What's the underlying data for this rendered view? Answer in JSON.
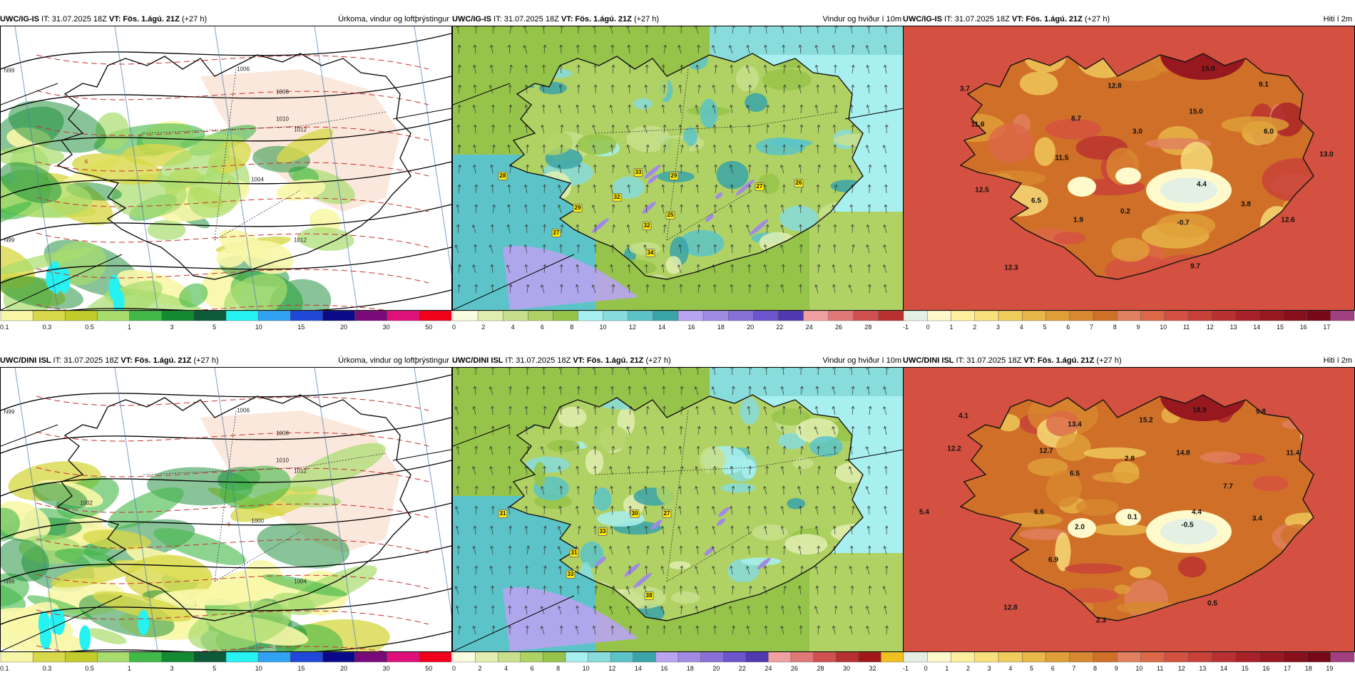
{
  "colors": {
    "precip": [
      "#f8f7a8",
      "#d8d84a",
      "#c2cc2a",
      "#a8dd6e",
      "#42b848",
      "#138a32",
      "#0c5a38",
      "#26f2f2",
      "#31a2f2",
      "#2047d8",
      "#0a0a88",
      "#7a0a7a",
      "#e0107a",
      "#f0001a"
    ],
    "wind": [
      "#fbfde0",
      "#e2eeb0",
      "#c8e08c",
      "#b0d264",
      "#96c44a",
      "#a8f0f0",
      "#88dcdc",
      "#5cc4c8",
      "#3aa4a8",
      "#b8a4f0",
      "#a08ae4",
      "#8870d8",
      "#6c54cc",
      "#5038b0",
      "#f0a0a0",
      "#e07878",
      "#d05050",
      "#b83030",
      "#a01818",
      "#f0c020"
    ],
    "temp": [
      "#e4f0e4",
      "#fffacc",
      "#fff0a0",
      "#f8e07c",
      "#f0cc5c",
      "#e8b848",
      "#e0a038",
      "#d88830",
      "#d07028",
      "#e08060",
      "#dc6848",
      "#d45040",
      "#c84038",
      "#b83030",
      "#a82028",
      "#981820",
      "#88101c",
      "#780818",
      "#a04080"
    ]
  },
  "panels": [
    {
      "model": "UWC/IG-IS",
      "run_text": " IT: 31.07.2025 18Z ",
      "vt_label": "VT: Fös. 1.ágú. 21Z",
      "lead": " (+27 h)",
      "title": "Úrkoma, vindur og loftþrýstingur",
      "field": "precip",
      "legend": [
        "0.1",
        "0.3",
        "0.5",
        "1",
        "3",
        "5",
        "10",
        "15",
        "20",
        "30",
        "50"
      ],
      "isobars": [
        "1006",
        "1008",
        "1010",
        "1012",
        "1004",
        "1012",
        "6",
        "4",
        "N99",
        "N99"
      ],
      "values": []
    },
    {
      "model": "UWC/IG-IS",
      "run_text": " IT: 31.07.2025 18Z ",
      "vt_label": "VT: Fös. 1.ágú. 21Z",
      "lead": " (+27 h)",
      "title": "Vindur og hviður í 10m",
      "field": "wind",
      "legend": [
        "0",
        "2",
        "4",
        "6",
        "8",
        "10",
        "12",
        "14",
        "16",
        "18",
        "20",
        "22",
        "24",
        "26",
        "28"
      ],
      "values": [
        "28",
        "32",
        "33",
        "29",
        "27",
        "26",
        "29",
        "25",
        "32",
        "27",
        "34"
      ]
    },
    {
      "model": "UWC/IG-IS",
      "run_text": " IT: 31.07.2025 18Z ",
      "vt_label": "VT: Fös. 1.ágú. 21Z",
      "lead": " (+27 h)",
      "title": "Hiti í 2m",
      "field": "temp",
      "legend": [
        "-1",
        "0",
        "1",
        "2",
        "3",
        "4",
        "5",
        "6",
        "7",
        "8",
        "9",
        "10",
        "11",
        "12",
        "13",
        "14",
        "15",
        "16",
        "17"
      ],
      "values": [
        "15.0",
        "9.1",
        "3.7",
        "12.8",
        "11.6",
        "8.7",
        "15.0",
        "3.0",
        "6.0",
        "11.5",
        "13.0",
        "4.4",
        "12.5",
        "6.5",
        "1.9",
        "0.2",
        "3.8",
        "-0.7",
        "12.6",
        "12.3",
        "9.7"
      ]
    },
    {
      "model": "UWC/DINI ISL",
      "run_text": " IT: 31.07.2025 18Z ",
      "vt_label": "VT: Fös. 1.ágú. 21Z",
      "lead": " (+27 h)",
      "title": "Úrkoma, vindur og loftþrýstingur",
      "field": "precip",
      "legend": [
        "0.1",
        "0.3",
        "0.5",
        "1",
        "3",
        "5",
        "10",
        "15",
        "20",
        "30",
        "50"
      ],
      "isobars": [
        "1006",
        "1008",
        "1010",
        "1012",
        "1000",
        "1004",
        "1002",
        "6",
        "N99",
        "N99"
      ],
      "values": []
    },
    {
      "model": "UWC/DINI ISL",
      "run_text": " IT: 31.07.2025 18Z ",
      "vt_label": "VT: Fös. 1.ágú. 21Z",
      "lead": " (+27 h)",
      "title": "Vindur og hviður í 10m",
      "field": "wind",
      "legend": [
        "0",
        "2",
        "4",
        "6",
        "8",
        "10",
        "12",
        "14",
        "16",
        "18",
        "20",
        "22",
        "24",
        "26",
        "28",
        "30",
        "32"
      ],
      "values": [
        "31",
        "30",
        "27",
        "33",
        "31",
        "33",
        "38"
      ]
    },
    {
      "model": "UWC/DINI ISL",
      "run_text": " IT: 31.07.2025 18Z ",
      "vt_label": "VT: Fös. 1.ágú. 21Z",
      "lead": " (+27 h)",
      "title": "Hiti í 2m",
      "field": "temp",
      "legend": [
        "-1",
        "0",
        "1",
        "2",
        "3",
        "4",
        "5",
        "6",
        "7",
        "8",
        "9",
        "10",
        "11",
        "12",
        "13",
        "14",
        "15",
        "16",
        "17",
        "18",
        "19"
      ],
      "values": [
        "18.9",
        "9.8",
        "4.1",
        "15.2",
        "13.4",
        "12.2",
        "12.7",
        "2.8",
        "14.8",
        "11.4",
        "6.5",
        "7.7",
        "4.4",
        "5.4",
        "6.6",
        "2.0",
        "0.1",
        "-0.5",
        "3.4",
        "6.9",
        "12.8",
        "0.5",
        "2.3"
      ]
    }
  ]
}
